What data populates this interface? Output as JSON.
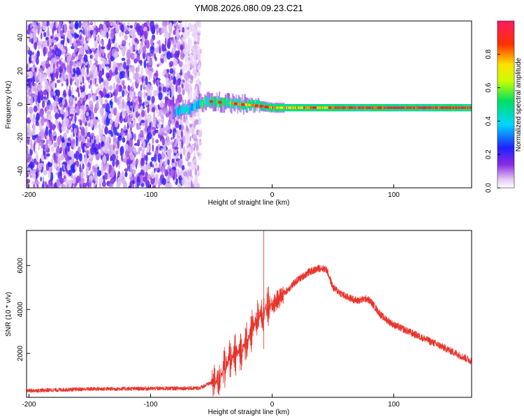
{
  "title": "YM08.2026.080.09.23.C21",
  "chart_data": [
    {
      "type": "heatmap",
      "xlabel": "Height of straight line (km)",
      "ylabel": "Frequency (Hz)",
      "xlim": [
        -202,
        164
      ],
      "ylim": [
        -50,
        50
      ],
      "xticks": [
        -200,
        -100,
        0,
        100
      ],
      "yticks": [
        -40,
        -20,
        0,
        20,
        40
      ],
      "noise_region_x": [
        -202,
        -65
      ],
      "signal_band": [
        {
          "x": -85,
          "freq": -5
        },
        {
          "x": -70,
          "freq": -3
        },
        {
          "x": -55,
          "freq": 2
        },
        {
          "x": -40,
          "freq": 1
        },
        {
          "x": -25,
          "freq": 0
        },
        {
          "x": -10,
          "freq": -1
        },
        {
          "x": 0,
          "freq": -2
        },
        {
          "x": 40,
          "freq": -2
        },
        {
          "x": 80,
          "freq": -2
        },
        {
          "x": 120,
          "freq": -2
        },
        {
          "x": 164,
          "freq": -2
        }
      ],
      "colorbar": {
        "label": "Normalized spectral amplitude",
        "range": [
          0,
          1
        ],
        "ticks": [
          "0.0",
          "0.2",
          "0.4",
          "0.6",
          "0.8"
        ]
      }
    },
    {
      "type": "line",
      "xlabel": "Height of straight line (km)",
      "ylabel": "SNR (10 * v/v)",
      "xlim": [
        -202,
        164
      ],
      "ylim": [
        0,
        7600
      ],
      "xticks": [
        -200,
        -100,
        0,
        100
      ],
      "yticks": [
        2000,
        4000,
        6000
      ],
      "color": "#e8342c",
      "series": [
        {
          "name": "SNR",
          "x": [
            -202,
            -150,
            -100,
            -60,
            -45,
            -35,
            -25,
            -20,
            -12,
            -8,
            0,
            20,
            30,
            40,
            45,
            50,
            60,
            70,
            78,
            82,
            90,
            100,
            120,
            140,
            164
          ],
          "values": [
            300,
            380,
            400,
            420,
            800,
            1700,
            2200,
            2600,
            3600,
            4000,
            4200,
            5300,
            5700,
            5900,
            5800,
            5000,
            4600,
            4400,
            4500,
            4300,
            3700,
            3300,
            2800,
            2300,
            1650
          ]
        }
      ],
      "annotations": [
        {
          "x": -7,
          "value": 7600,
          "label": "spike"
        }
      ]
    }
  ]
}
